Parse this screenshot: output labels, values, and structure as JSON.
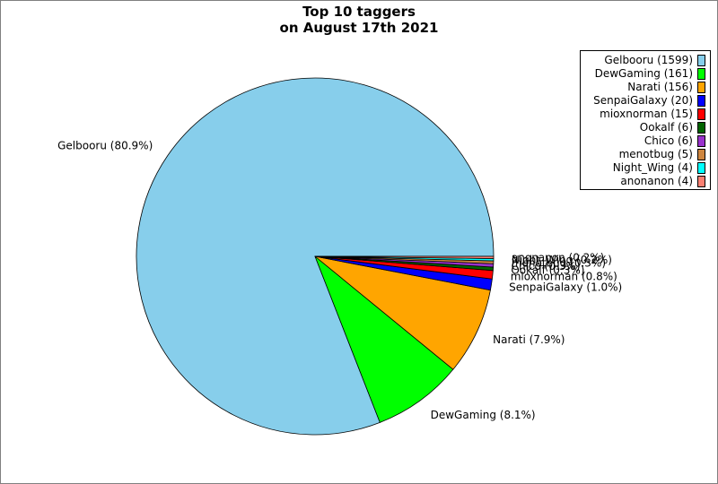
{
  "chart_data": {
    "type": "pie",
    "title": "Top 10 taggers\non August 17th 2021",
    "title_lines": [
      "Top 10 taggers",
      "on August 17th 2021"
    ],
    "legend_position": "top-right",
    "start_angle_deg": 0,
    "direction": "counterclockwise",
    "slices": [
      {
        "name": "Gelbooru",
        "value": 1599,
        "legend": "Gelbooru (1599)",
        "label": "Gelbooru (80.9%)",
        "color": "#87ceeb"
      },
      {
        "name": "DewGaming",
        "value": 161,
        "legend": "DewGaming (161)",
        "label": "DewGaming (8.1%)",
        "color": "#00ff00"
      },
      {
        "name": "Narati",
        "value": 156,
        "legend": "Narati (156)",
        "label": "Narati (7.9%)",
        "color": "#ffa500"
      },
      {
        "name": "SenpaiGalaxy",
        "value": 20,
        "legend": "SenpaiGalaxy (20)",
        "label": "SenpaiGalaxy (1.0%)",
        "color": "#0000ff"
      },
      {
        "name": "mioxnorman",
        "value": 15,
        "legend": "mioxnorman (15)",
        "label": "mioxnorman (0.8%)",
        "color": "#ff0000"
      },
      {
        "name": "Ookalf",
        "value": 6,
        "legend": "Ookalf (6)",
        "label": "Ookalf (0.3%)",
        "color": "#006400"
      },
      {
        "name": "Chico",
        "value": 6,
        "legend": "Chico (6)",
        "label": "Chico (0.3%)",
        "color": "#9932cc"
      },
      {
        "name": "menotbug",
        "value": 5,
        "legend": "menotbug (5)",
        "label": "menotbug (0.3%)",
        "color": "#cd853f"
      },
      {
        "name": "Night_Wing",
        "value": 4,
        "legend": "Night_Wing (4)",
        "label": "Night_Wing (0.2%)",
        "color": "#00ffff"
      },
      {
        "name": "anonanon",
        "value": 4,
        "legend": "anonanon (4)",
        "label": "anonanon (0.2%)",
        "color": "#fa8072"
      }
    ]
  }
}
